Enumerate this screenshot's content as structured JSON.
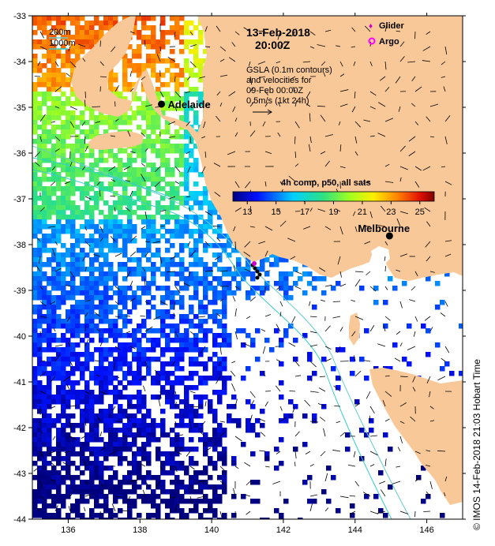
{
  "title": {
    "date": "13-Feb-2018",
    "time": "20:00Z"
  },
  "description": {
    "line1": "GSLA (0.1m contours)",
    "line2": "and velocities for",
    "line3": "09-Feb 00:00Z",
    "line4": "0.5m/s (1kt 24h)"
  },
  "depth_legend": {
    "shallow": "200m",
    "deep": "1000m",
    "shallow_color": "#66cccc",
    "deep_color": "#33cccc"
  },
  "symbol_legend": {
    "glider": "Glider",
    "argo": "Argo",
    "glider_color": "#cc00cc",
    "argo_color": "#ff00ff"
  },
  "colorbar": {
    "title": "4h comp, p50, all sats",
    "min": 12,
    "max": 26,
    "ticks": [
      "13",
      "15",
      "17",
      "19",
      "21",
      "23",
      "25"
    ]
  },
  "cities": [
    {
      "name": "Adelaide",
      "lon": 138.6,
      "lat": -34.93
    },
    {
      "name": "Melbourne",
      "lon": 144.96,
      "lat": -37.81
    }
  ],
  "axes": {
    "lon_range": [
      135,
      147
    ],
    "lat_range": [
      -44,
      -33
    ],
    "lon_ticks": [
      "136",
      "138",
      "140",
      "142",
      "144",
      "146"
    ],
    "lat_ticks": [
      "-33",
      "-34",
      "-35",
      "-36",
      "-37",
      "-38",
      "-39",
      "-40",
      "-41",
      "-42",
      "-43",
      "-44"
    ]
  },
  "colors": {
    "land": "#f9c898",
    "background": "#ffffff",
    "city_dot": "#000000"
  },
  "credit": "©  IMOS 14-Feb-2018 21:03 Hobart Time"
}
